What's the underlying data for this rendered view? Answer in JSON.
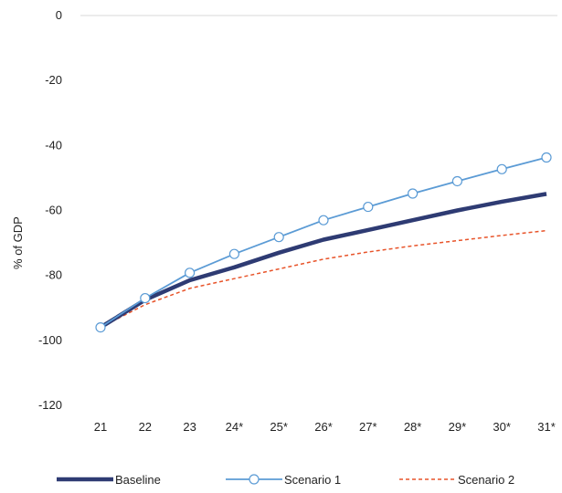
{
  "chart_data": {
    "type": "line",
    "title": "",
    "xlabel": "",
    "ylabel": "% of GDP",
    "categories": [
      "21",
      "22",
      "23",
      "24*",
      "25*",
      "26*",
      "27*",
      "28*",
      "29*",
      "30*",
      "31*"
    ],
    "ylim": [
      -120,
      0
    ],
    "yticks": [
      0,
      -20,
      -40,
      -60,
      -80,
      -100,
      -120
    ],
    "grid": false,
    "legend_position": "bottom",
    "series": [
      {
        "name": "Baseline",
        "color": "#2e3b73",
        "style": "thick-solid",
        "values": [
          -96,
          -87.5,
          -81.5,
          -77.5,
          -73,
          -69,
          -66,
          -63,
          -60,
          -57.3,
          -54.9
        ]
      },
      {
        "name": "Scenario 1",
        "color": "#5b9bd5",
        "style": "solid-with-markers",
        "values": [
          -96,
          -87,
          -79.2,
          -73.4,
          -68.2,
          -63,
          -58.9,
          -54.8,
          -51,
          -47.3,
          -43.7
        ]
      },
      {
        "name": "Scenario 2",
        "color": "#e8542a",
        "style": "dashed",
        "values": [
          -96,
          -89,
          -84,
          -81,
          -78,
          -75,
          -72.8,
          -70.9,
          -69.3,
          -67.7,
          -66.2
        ]
      }
    ]
  }
}
